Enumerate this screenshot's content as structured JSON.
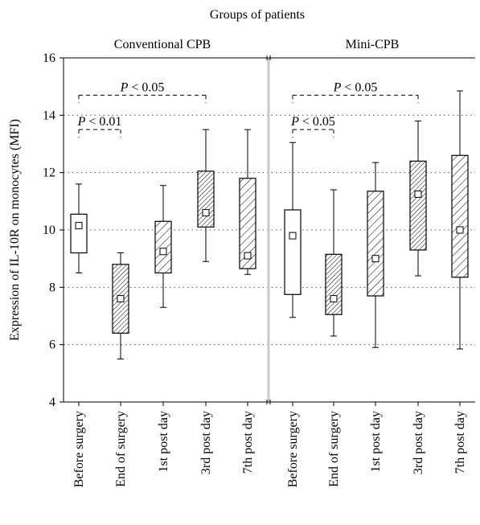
{
  "chart_data": {
    "type": "box",
    "title": "Groups of patients",
    "ylabel": "Expression of IL-10R on monocytes (MFI)",
    "ylim": [
      4,
      16
    ],
    "yticks": [
      4,
      6,
      8,
      10,
      12,
      14,
      16
    ],
    "grid": true,
    "categories": [
      "Before surgery",
      "End of surgery",
      "1st post day",
      "3rd post day",
      "7th post day"
    ],
    "groups": [
      {
        "name": "Conventional CPB",
        "boxes": [
          {
            "category": "Before surgery",
            "min": 8.5,
            "q1": 9.2,
            "median": 10.15,
            "q3": 10.55,
            "max": 11.6,
            "hatch": "none"
          },
          {
            "category": "End of surgery",
            "min": 5.5,
            "q1": 6.4,
            "median": 7.6,
            "q3": 8.8,
            "max": 9.2,
            "hatch": "fine"
          },
          {
            "category": "1st post day",
            "min": 7.3,
            "q1": 8.5,
            "median": 9.25,
            "q3": 10.3,
            "max": 11.55,
            "hatch": "wide"
          },
          {
            "category": "3rd post day",
            "min": 8.9,
            "q1": 10.1,
            "median": 10.6,
            "q3": 12.05,
            "max": 13.5,
            "hatch": "fine"
          },
          {
            "category": "7th post day",
            "min": 8.45,
            "q1": 8.65,
            "median": 9.1,
            "q3": 11.8,
            "max": 13.5,
            "hatch": "wide"
          }
        ],
        "annotations": [
          {
            "text": "P < 0.05",
            "from": "Before surgery",
            "to": "3rd post day",
            "level": 14.7
          },
          {
            "text": "P < 0.01",
            "from": "Before surgery",
            "to": "End of surgery",
            "level": 13.5
          }
        ]
      },
      {
        "name": "Mini-CPB",
        "boxes": [
          {
            "category": "Before surgery",
            "min": 6.95,
            "q1": 7.75,
            "median": 9.8,
            "q3": 10.7,
            "max": 13.05,
            "hatch": "none"
          },
          {
            "category": "End of surgery",
            "min": 6.3,
            "q1": 7.05,
            "median": 7.6,
            "q3": 9.15,
            "max": 11.4,
            "hatch": "fine"
          },
          {
            "category": "1st post day",
            "min": 5.9,
            "q1": 7.7,
            "median": 9.0,
            "q3": 11.35,
            "max": 12.35,
            "hatch": "wide"
          },
          {
            "category": "3rd post day",
            "min": 8.4,
            "q1": 9.3,
            "median": 11.25,
            "q3": 12.4,
            "max": 13.8,
            "hatch": "fine"
          },
          {
            "category": "7th post day",
            "min": 5.85,
            "q1": 8.35,
            "median": 10.0,
            "q3": 12.6,
            "max": 14.85,
            "hatch": "wide"
          }
        ],
        "annotations": [
          {
            "text": "P < 0.05",
            "from": "Before surgery",
            "to": "3rd post day",
            "level": 14.7
          },
          {
            "text": "P < 0.05",
            "from": "Before surgery",
            "to": "End of surgery",
            "level": 13.5
          }
        ]
      }
    ]
  }
}
